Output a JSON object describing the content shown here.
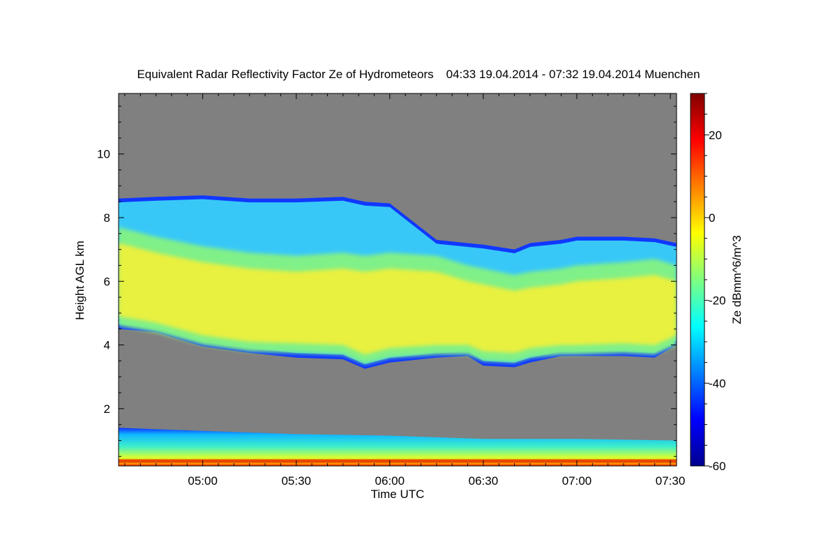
{
  "chart_data": {
    "type": "heatmap",
    "title": "Equivalent Radar Reflectivity Factor Ze of Hydrometeors",
    "period": "04:33 19.04.2014 - 07:32 19.04.2014",
    "location": "Muenchen",
    "xlabel": "Time UTC",
    "ylabel": "Height AGL km",
    "x_range": [
      "04:33",
      "07:32"
    ],
    "x_ticks": [
      "05:00",
      "05:30",
      "06:00",
      "06:30",
      "07:00",
      "07:30"
    ],
    "y_range": [
      0.2,
      11.9
    ],
    "y_ticks": [
      2,
      4,
      6,
      8,
      10
    ],
    "colorbar": {
      "label": "Ze dBmm^6/m^3",
      "range": [
        -60,
        30
      ],
      "ticks": [
        20,
        0,
        -20,
        -40,
        -60
      ],
      "colormap": "jet"
    },
    "no_signal_color": "#808080",
    "layers": [
      {
        "name": "upper cloud layer",
        "times": [
          "04:33",
          "04:45",
          "05:00",
          "05:15",
          "05:30",
          "05:45",
          "05:52",
          "06:00",
          "06:15",
          "06:25",
          "06:30",
          "06:40",
          "06:45",
          "06:55",
          "07:00",
          "07:15",
          "07:25",
          "07:32"
        ],
        "base_km": [
          4.5,
          4.4,
          3.95,
          3.75,
          3.6,
          3.55,
          3.25,
          3.45,
          3.6,
          3.65,
          3.35,
          3.3,
          3.45,
          3.65,
          3.65,
          3.65,
          3.6,
          4.0
        ],
        "top_km": [
          8.6,
          8.65,
          8.7,
          8.6,
          8.6,
          8.65,
          8.5,
          8.45,
          7.3,
          7.2,
          7.15,
          7.0,
          7.2,
          7.3,
          7.4,
          7.4,
          7.35,
          7.2
        ],
        "core_base_km": [
          4.9,
          4.7,
          4.3,
          4.1,
          4.05,
          4.0,
          3.7,
          3.9,
          4.0,
          4.0,
          3.8,
          3.75,
          3.9,
          4.0,
          4.0,
          4.05,
          4.0,
          4.3
        ],
        "core_top_km": [
          7.2,
          6.9,
          6.6,
          6.4,
          6.3,
          6.4,
          6.3,
          6.4,
          6.3,
          6.0,
          5.9,
          5.7,
          5.8,
          5.9,
          6.0,
          6.1,
          6.2,
          6.0
        ]
      },
      {
        "name": "low-level rain layer",
        "times": [
          "04:33",
          "05:00",
          "05:30",
          "06:00",
          "06:30",
          "07:00",
          "07:32"
        ],
        "base_km": [
          0.2,
          0.2,
          0.2,
          0.2,
          0.2,
          0.2,
          0.2
        ],
        "top_km": [
          1.4,
          1.3,
          1.2,
          1.15,
          1.05,
          1.05,
          1.0
        ]
      }
    ]
  }
}
